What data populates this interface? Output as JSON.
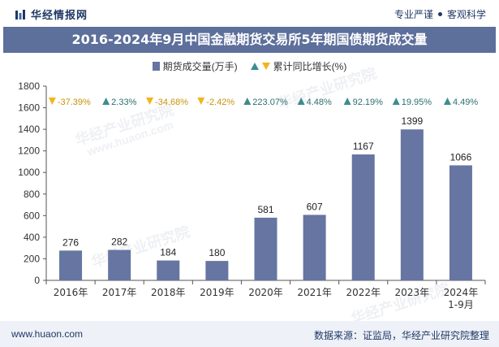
{
  "brand": {
    "name": "华经情报网",
    "tagline_left": "专业严谨",
    "tagline_right": "客观科学"
  },
  "title": "2016-2024年9月中国金融期货交易所5年期国债期货成交量",
  "legend": {
    "bar": "期货成交量(万手)",
    "line": "累计同比增长(%)"
  },
  "colors": {
    "bar": "#6675a1",
    "title_band": "#5d6f9b",
    "up": "#3d8d8d",
    "down": "#f2b51c"
  },
  "chart_data": {
    "type": "bar",
    "categories": [
      "2016年",
      "2017年",
      "2018年",
      "2019年",
      "2020年",
      "2021年",
      "2022年",
      "2023年",
      "2024年\n1-9月"
    ],
    "series": [
      {
        "name": "期货成交量(万手)",
        "values": [
          276,
          282,
          184,
          180,
          581,
          607,
          1167,
          1399,
          1066
        ]
      }
    ],
    "growth": {
      "name": "累计同比增长(%)",
      "labels": [
        "-37.39%",
        "2.33%",
        "-34.68%",
        "-2.42%",
        "223.07%",
        "4.48%",
        "92.19%",
        "19.95%",
        "4.49%"
      ],
      "direction": [
        "down",
        "up",
        "down",
        "down",
        "up",
        "up",
        "up",
        "up",
        "up"
      ]
    },
    "ylim": [
      0,
      1800
    ],
    "yticks": [
      0,
      200,
      400,
      600,
      800,
      1000,
      1200,
      1400,
      1600,
      1800
    ],
    "grid": false
  },
  "footer": {
    "website": "www.huaon.com",
    "source": "数据来源：证监局，华经产业研究院整理"
  },
  "watermark": {
    "cn": "华经产业研究院",
    "url": "www.huaon.com"
  }
}
